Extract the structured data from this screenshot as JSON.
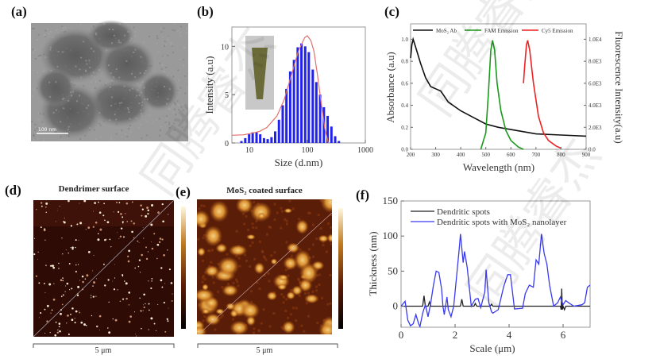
{
  "watermark": "同腾睿杰",
  "panels": {
    "a": {
      "label": "(a)",
      "scale_bar": "100 nm"
    },
    "b": {
      "label": "(b)"
    },
    "c": {
      "label": "(c)"
    },
    "d": {
      "label": "(d)",
      "title": "Dendrimer surface",
      "scale_bar": "5 μm"
    },
    "e": {
      "label": "(e)",
      "title": "MoS₂ coated surface",
      "scale_bar": "5 μm"
    },
    "f": {
      "label": "(f)"
    }
  },
  "chart_data": [
    {
      "id": "b",
      "type": "bar",
      "xlabel": "Size (d.nm)",
      "ylabel": "Intensity (a.u)",
      "xscale": "log",
      "xlim": [
        5,
        1000
      ],
      "ylim": [
        0,
        12
      ],
      "xticks": [
        "10",
        "100",
        "1000"
      ],
      "yticks": [
        "0",
        "5",
        "10"
      ],
      "colors": {
        "bars": "#2222ee",
        "fit": "#e07070"
      },
      "bars": {
        "x": [
          7.3,
          8.5,
          9.9,
          11.4,
          13.3,
          15.4,
          17.9,
          20.7,
          24.1,
          27.9,
          32.4,
          37.6,
          43.6,
          50.6,
          58.8,
          68.2,
          79.1,
          91.8,
          106,
          124,
          143,
          166,
          193,
          224,
          260,
          302,
          350
        ],
        "values": [
          0.2,
          0.5,
          0.9,
          1.1,
          1.1,
          0.9,
          0.5,
          0.4,
          0.6,
          1.2,
          2.4,
          3.9,
          5.6,
          7.4,
          8.6,
          9.9,
          10.3,
          10.0,
          9.4,
          7.6,
          6.3,
          5.0,
          3.7,
          2.8,
          1.7,
          0.7,
          0.2
        ]
      },
      "fit": [
        [
          5,
          0.8
        ],
        [
          8,
          0.85
        ],
        [
          10,
          0.95
        ],
        [
          15,
          1.2
        ],
        [
          20,
          1.6
        ],
        [
          30,
          2.8
        ],
        [
          40,
          4.5
        ],
        [
          50,
          6.5
        ],
        [
          70,
          9.5
        ],
        [
          90,
          10.9
        ],
        [
          100,
          11.1
        ],
        [
          115,
          10.6
        ],
        [
          130,
          9.5
        ],
        [
          150,
          7.0
        ],
        [
          175,
          4.0
        ],
        [
          200,
          1.5
        ],
        [
          230,
          0
        ]
      ]
    },
    {
      "id": "c",
      "type": "line",
      "xlabel": "Wavelength (nm)",
      "ylabel": "Absorbance (a.u)",
      "ylabel_right": "Fluorescence Intensity(a.u)",
      "xlim": [
        200,
        900
      ],
      "ylim": [
        0,
        1.14
      ],
      "ylim_right": [
        0,
        11400
      ],
      "xticks": [
        "200",
        "300",
        "400",
        "500",
        "600",
        "700",
        "800",
        "900"
      ],
      "yticks": [
        "0.0",
        "0.2",
        "0.4",
        "0.6",
        "0.8",
        "1.0"
      ],
      "yticks_right": [
        "0.0",
        "2.0E3",
        "4.0E3",
        "6.0E3",
        "8.0E3",
        "1.0E4"
      ],
      "legend": "top",
      "series": [
        {
          "name": "MoS₂ Ab",
          "axis": "left",
          "color": "#111111",
          "points": [
            [
              200,
              0.83
            ],
            [
              205,
              0.95
            ],
            [
              210,
              1.0
            ],
            [
              220,
              0.93
            ],
            [
              240,
              0.78
            ],
            [
              260,
              0.65
            ],
            [
              280,
              0.57
            ],
            [
              300,
              0.55
            ],
            [
              320,
              0.53
            ],
            [
              350,
              0.43
            ],
            [
              400,
              0.35
            ],
            [
              450,
              0.29
            ],
            [
              500,
              0.23
            ],
            [
              550,
              0.2
            ],
            [
              600,
              0.18
            ],
            [
              650,
              0.16
            ],
            [
              700,
              0.14
            ],
            [
              800,
              0.13
            ],
            [
              900,
              0.12
            ]
          ]
        },
        {
          "name": "FAM Emission",
          "axis": "right",
          "color": "#1a9a1a",
          "points": [
            [
              480,
              0
            ],
            [
              500,
              1500
            ],
            [
              510,
              5000
            ],
            [
              520,
              9000
            ],
            [
              527,
              9900
            ],
            [
              535,
              9000
            ],
            [
              545,
              6000
            ],
            [
              560,
              3500
            ],
            [
              580,
              1700
            ],
            [
              600,
              800
            ],
            [
              630,
              200
            ],
            [
              650,
              0
            ]
          ]
        },
        {
          "name": "Cy5 Emission",
          "axis": "right",
          "color": "#ee2222",
          "points": [
            [
              650,
              6000
            ],
            [
              655,
              7500
            ],
            [
              662,
              9500
            ],
            [
              667,
              9900
            ],
            [
              675,
              9000
            ],
            [
              690,
              6000
            ],
            [
              710,
              3000
            ],
            [
              730,
              1500
            ],
            [
              750,
              800
            ],
            [
              780,
              300
            ],
            [
              800,
              100
            ]
          ]
        }
      ]
    },
    {
      "id": "f",
      "type": "line",
      "xlabel": "Scale (μm)",
      "ylabel": "Thickness (nm)",
      "xlim": [
        0,
        7
      ],
      "ylim": [
        -30,
        150
      ],
      "xticks": [
        "0",
        "2",
        "4",
        "6"
      ],
      "yticks": [
        "0",
        "50",
        "100",
        "150"
      ],
      "legend": "top-left",
      "series": [
        {
          "name": "Dendritic spots",
          "color": "#222222",
          "points": [
            [
              0,
              0
            ],
            [
              0.8,
              0
            ],
            [
              0.85,
              15
            ],
            [
              0.9,
              0
            ],
            [
              1.0,
              0
            ],
            [
              1.05,
              6
            ],
            [
              1.1,
              0
            ],
            [
              2.2,
              0
            ],
            [
              2.25,
              10
            ],
            [
              2.3,
              0
            ],
            [
              2.7,
              0
            ],
            [
              2.75,
              4
            ],
            [
              2.8,
              0
            ],
            [
              3.3,
              0
            ],
            [
              3.35,
              3
            ],
            [
              3.4,
              0
            ],
            [
              5.9,
              0
            ],
            [
              5.93,
              -5
            ],
            [
              5.95,
              25
            ],
            [
              5.97,
              -5
            ],
            [
              6.0,
              0
            ],
            [
              6.05,
              -5
            ],
            [
              6.1,
              0
            ],
            [
              7,
              0
            ]
          ]
        },
        {
          "name": "Dendritic spots with MoS₂ nanolayer",
          "color": "#3a3aee",
          "points": [
            [
              0,
              0
            ],
            [
              0.15,
              7
            ],
            [
              0.25,
              -20
            ],
            [
              0.35,
              -28
            ],
            [
              0.45,
              -25
            ],
            [
              0.55,
              -12
            ],
            [
              0.65,
              -25
            ],
            [
              0.7,
              -29
            ],
            [
              0.8,
              -10
            ],
            [
              0.9,
              2
            ],
            [
              1.0,
              -15
            ],
            [
              1.1,
              5
            ],
            [
              1.2,
              30
            ],
            [
              1.3,
              50
            ],
            [
              1.4,
              48
            ],
            [
              1.5,
              25
            ],
            [
              1.55,
              0
            ],
            [
              1.6,
              -12
            ],
            [
              1.7,
              13
            ],
            [
              1.75,
              -5
            ],
            [
              1.85,
              -15
            ],
            [
              1.95,
              0
            ],
            [
              2.05,
              40
            ],
            [
              2.15,
              80
            ],
            [
              2.2,
              103
            ],
            [
              2.3,
              62
            ],
            [
              2.35,
              78
            ],
            [
              2.45,
              55
            ],
            [
              2.6,
              0
            ],
            [
              2.75,
              10
            ],
            [
              2.85,
              11
            ],
            [
              2.95,
              -2
            ],
            [
              3.1,
              20
            ],
            [
              3.15,
              52
            ],
            [
              3.25,
              5
            ],
            [
              3.35,
              -8
            ],
            [
              3.4,
              -10
            ],
            [
              3.6,
              -5
            ],
            [
              3.8,
              28
            ],
            [
              3.95,
              45
            ],
            [
              4.05,
              45
            ],
            [
              4.2,
              -4
            ],
            [
              4.5,
              -3
            ],
            [
              4.6,
              18
            ],
            [
              4.75,
              30
            ],
            [
              4.9,
              27
            ],
            [
              5.0,
              66
            ],
            [
              5.1,
              60
            ],
            [
              5.2,
              103
            ],
            [
              5.3,
              75
            ],
            [
              5.4,
              60
            ],
            [
              5.5,
              30
            ],
            [
              5.65,
              0
            ],
            [
              5.8,
              5
            ],
            [
              5.9,
              13
            ],
            [
              6.0,
              2
            ],
            [
              6.1,
              8
            ],
            [
              6.2,
              5
            ],
            [
              6.4,
              0
            ],
            [
              6.7,
              2
            ],
            [
              6.8,
              5
            ],
            [
              6.9,
              27
            ],
            [
              7.0,
              30
            ]
          ]
        }
      ]
    }
  ]
}
